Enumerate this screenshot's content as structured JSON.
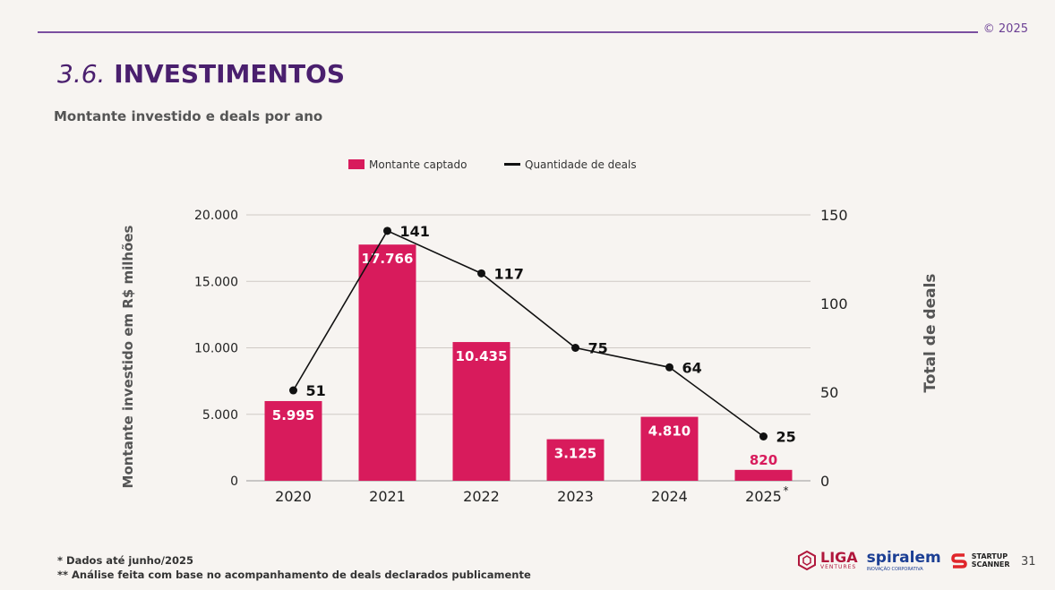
{
  "header": {
    "copyright": "© 2025",
    "title_num": "3.6.",
    "title_text": "INVESTIMENTOS",
    "subtitle": "Montante investido e deals por ano"
  },
  "footnotes": {
    "note1": "* Dados até junho/2025",
    "note2": "** Análise feita com base no acompanhamento de deals declarados publicamente"
  },
  "logos": {
    "liga": "LIGA",
    "liga_sub": "VENTURES",
    "spiralem": "spiralem",
    "spiralem_sub": "INOVAÇÃO CORPORATIVA",
    "scanner_line1": "STARTUP",
    "scanner_line2": "SCANNER"
  },
  "page_number": "31",
  "colors": {
    "bar": "#d81b5c",
    "line": "#111111",
    "title": "#4a1f6e",
    "accent_line": "#7b4fa0"
  },
  "chart_data": {
    "type": "bar",
    "categories": [
      "2020",
      "2021",
      "2022",
      "2023",
      "2024",
      "2025"
    ],
    "category_marks": [
      "",
      "",
      "",
      "",
      "",
      "*"
    ],
    "series": [
      {
        "name": "Montante captado",
        "type": "bar",
        "axis": "left",
        "values": [
          5995,
          17766,
          10435,
          3125,
          4810,
          820
        ],
        "labels": [
          "5.995",
          "17.766",
          "10.435",
          "3.125",
          "4.810",
          "820"
        ]
      },
      {
        "name": "Quantidade de deals",
        "type": "line",
        "axis": "right",
        "values": [
          51,
          141,
          117,
          75,
          64,
          25
        ],
        "labels": [
          "51",
          "141",
          "117",
          "75",
          "64",
          "25"
        ]
      }
    ],
    "ylabel": "Montante investido em R$ milhões",
    "y2label": "Total de deals",
    "ylim": [
      0,
      20000
    ],
    "y2lim": [
      0,
      150
    ],
    "yticks": [
      0,
      5000,
      10000,
      15000,
      20000
    ],
    "ytick_labels": [
      "0",
      "5.000",
      "10.000",
      "15.000",
      "20.000"
    ],
    "y2ticks": [
      0,
      50,
      100,
      150
    ],
    "y2tick_labels": [
      "0",
      "50",
      "100",
      "150"
    ],
    "grid": true,
    "legend": "top"
  }
}
